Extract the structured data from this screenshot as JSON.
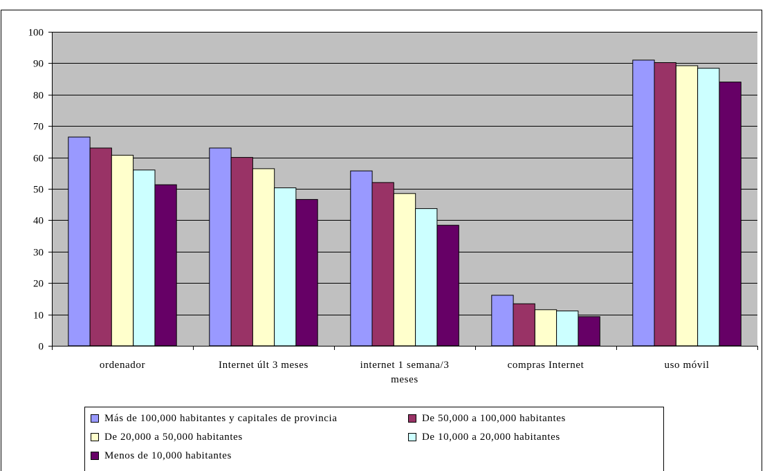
{
  "chart_data": {
    "type": "bar",
    "categories": [
      "ordenador",
      "Internet últ  3 meses",
      "internet 1 semana/3 meses",
      "compras Internet",
      "uso móvil"
    ],
    "category_lines": [
      [
        "ordenador"
      ],
      [
        "Internet últ  3 meses"
      ],
      [
        "internet 1 semana/3",
        "meses"
      ],
      [
        "compras Internet"
      ],
      [
        "uso móvil"
      ]
    ],
    "ylim": [
      0,
      100
    ],
    "yticks": [
      "0",
      "10",
      "20",
      "30",
      "40",
      "50",
      "60",
      "70",
      "80",
      "90",
      "100"
    ],
    "grid": true,
    "plot_background": "#c0c0c0",
    "legend_position": "bottom",
    "series": [
      {
        "name": "Más de 100,000 habitantes y capitales de provincia",
        "color": "#9999ff",
        "values": [
          66.5,
          63.0,
          55.7,
          16.1,
          91.0
        ]
      },
      {
        "name": "De 50,000 a 100,000 habitantes",
        "color": "#993366",
        "values": [
          63.0,
          60.0,
          52.0,
          13.4,
          90.2
        ]
      },
      {
        "name": "De 20,000 a 50,000 habitantes",
        "color": "#ffffcc",
        "values": [
          60.7,
          56.4,
          48.5,
          11.5,
          89.2
        ]
      },
      {
        "name": "De 10,000 a 20,000 habitantes",
        "color": "#ccffff",
        "values": [
          56.0,
          50.3,
          43.7,
          11.1,
          88.4
        ]
      },
      {
        "name": "Menos de 10,000 habitantes",
        "color": "#660066",
        "values": [
          51.3,
          46.6,
          38.4,
          9.3,
          84.0
        ]
      }
    ]
  }
}
